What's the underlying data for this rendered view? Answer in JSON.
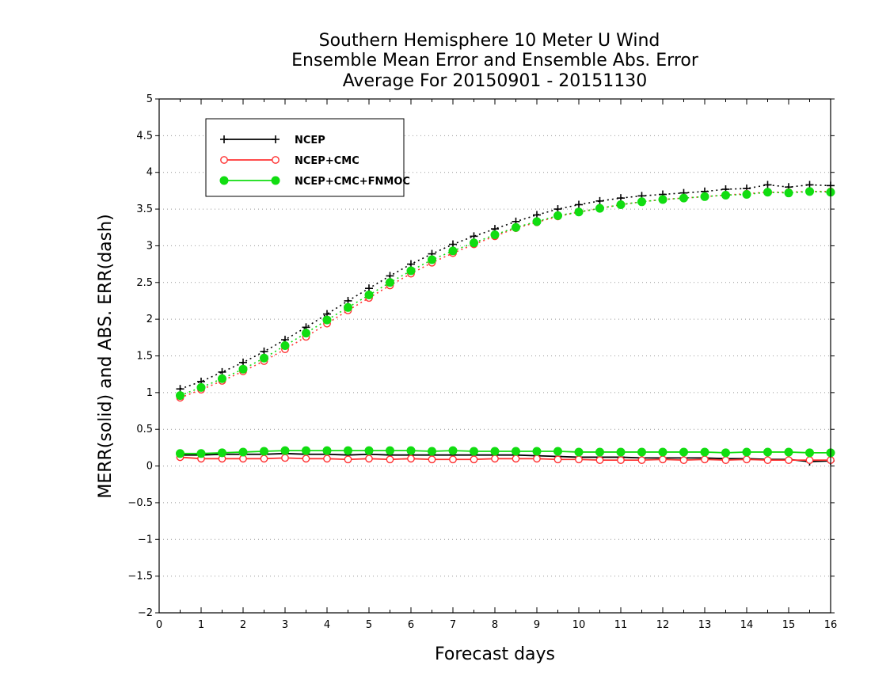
{
  "chart_data": {
    "type": "line",
    "title": [
      "Southern Hemisphere 10 Meter U Wind",
      "Ensemble Mean Error and Ensemble Abs. Error",
      "Average For 20150901 - 20151130"
    ],
    "xlabel": "Forecast days",
    "ylabel": "MERR(solid) and ABS. ERR(dash)",
    "xlim": [
      0,
      16
    ],
    "ylim": [
      -2,
      5
    ],
    "xticks": [
      "0",
      "1",
      "2",
      "3",
      "4",
      "5",
      "6",
      "7",
      "8",
      "9",
      "10",
      "11",
      "12",
      "13",
      "14",
      "15",
      "16"
    ],
    "yticks": [
      "−2",
      "−1.5",
      "−1",
      "−0.5",
      "0",
      "0.5",
      "1",
      "1.5",
      "2",
      "2.5",
      "3",
      "3.5",
      "4",
      "4.5",
      "5"
    ],
    "grid": true,
    "legend_position": "top-left",
    "x": [
      0.5,
      1,
      1.5,
      2,
      2.5,
      3,
      3.5,
      4,
      4.5,
      5,
      5.5,
      6,
      6.5,
      7,
      7.5,
      8,
      8.5,
      9,
      9.5,
      10,
      10.5,
      11,
      11.5,
      12,
      12.5,
      13,
      13.5,
      14,
      14.5,
      15,
      15.5,
      16
    ],
    "series": [
      {
        "name": "NCEP",
        "color": "#000000",
        "marker": "plus",
        "mean_error": [
          0.15,
          0.15,
          0.16,
          0.16,
          0.16,
          0.17,
          0.16,
          0.16,
          0.15,
          0.16,
          0.15,
          0.15,
          0.15,
          0.15,
          0.15,
          0.15,
          0.15,
          0.14,
          0.13,
          0.12,
          0.12,
          0.12,
          0.11,
          0.11,
          0.11,
          0.11,
          0.1,
          0.1,
          0.09,
          0.09,
          0.06,
          0.07
        ],
        "abs_error": [
          1.05,
          1.15,
          1.28,
          1.41,
          1.56,
          1.72,
          1.89,
          2.07,
          2.25,
          2.42,
          2.59,
          2.75,
          2.89,
          3.02,
          3.13,
          3.23,
          3.33,
          3.42,
          3.5,
          3.56,
          3.61,
          3.65,
          3.68,
          3.7,
          3.72,
          3.74,
          3.77,
          3.78,
          3.83,
          3.8,
          3.83,
          3.82
        ]
      },
      {
        "name": "NCEP+CMC",
        "color": "#ff3333",
        "marker": "open-circle",
        "mean_error": [
          0.12,
          0.1,
          0.1,
          0.1,
          0.1,
          0.11,
          0.1,
          0.1,
          0.09,
          0.1,
          0.09,
          0.1,
          0.09,
          0.09,
          0.09,
          0.1,
          0.1,
          0.1,
          0.09,
          0.09,
          0.08,
          0.08,
          0.08,
          0.09,
          0.08,
          0.09,
          0.08,
          0.09,
          0.08,
          0.08,
          0.08,
          0.08
        ],
        "abs_error": [
          0.93,
          1.04,
          1.16,
          1.29,
          1.43,
          1.59,
          1.76,
          1.94,
          2.12,
          2.29,
          2.46,
          2.62,
          2.77,
          2.9,
          3.02,
          3.13,
          3.24,
          3.32,
          3.4,
          3.46,
          3.51,
          3.56,
          3.6,
          3.63,
          3.65,
          3.67,
          3.69,
          3.71,
          3.73,
          3.73,
          3.74,
          3.74
        ]
      },
      {
        "name": "NCEP+CMC+FNMOC",
        "color": "#11dd11",
        "marker": "filled-circle",
        "mean_error": [
          0.17,
          0.17,
          0.18,
          0.19,
          0.2,
          0.21,
          0.21,
          0.21,
          0.21,
          0.21,
          0.21,
          0.21,
          0.2,
          0.21,
          0.2,
          0.2,
          0.2,
          0.2,
          0.2,
          0.19,
          0.19,
          0.19,
          0.19,
          0.19,
          0.19,
          0.19,
          0.18,
          0.19,
          0.19,
          0.19,
          0.18,
          0.18
        ],
        "abs_error": [
          0.96,
          1.07,
          1.19,
          1.32,
          1.47,
          1.64,
          1.81,
          1.99,
          2.16,
          2.33,
          2.5,
          2.66,
          2.81,
          2.93,
          3.04,
          3.15,
          3.25,
          3.33,
          3.41,
          3.46,
          3.51,
          3.56,
          3.6,
          3.63,
          3.65,
          3.67,
          3.69,
          3.7,
          3.73,
          3.72,
          3.74,
          3.73
        ]
      }
    ]
  }
}
